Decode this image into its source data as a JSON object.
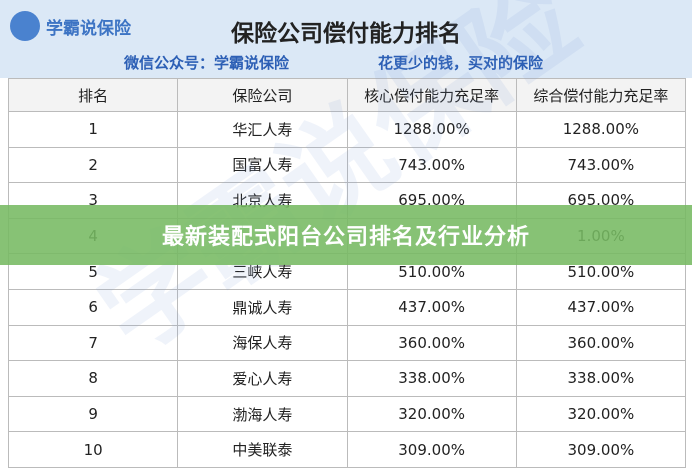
{
  "header": {
    "logo": "学霸说保险",
    "title": "保险公司偿付能力排名",
    "subtitle_left": "微信公众号：学霸说保险",
    "subtitle_right": "花更少的钱，买对的保险"
  },
  "table": {
    "columns": [
      "排名",
      "保险公司",
      "核心偿付能力充足率",
      "综合偿付能力充足率"
    ],
    "rows": [
      [
        "1",
        "华汇人寿",
        "1288.00%",
        "1288.00%"
      ],
      [
        "2",
        "国富人寿",
        "743.00%",
        "743.00%"
      ],
      [
        "3",
        "北京人寿",
        "695.00%",
        "695.00%"
      ],
      [
        "4",
        null,
        null,
        "1.00%"
      ],
      [
        "5",
        "三峡人寿",
        "510.00%",
        "510.00%"
      ],
      [
        "6",
        "鼎诚人寿",
        "437.00%",
        "437.00%"
      ],
      [
        "7",
        "海保人寿",
        "360.00%",
        "360.00%"
      ],
      [
        "8",
        "爱心人寿",
        "338.00%",
        "338.00%"
      ],
      [
        "9",
        "渤海人寿",
        "320.00%",
        "320.00%"
      ],
      [
        "10",
        "中美联泰",
        "309.00%",
        "309.00%"
      ]
    ]
  },
  "banner": "最新装配式阳台公司排名及行业分析",
  "watermark": "学霸说保险"
}
